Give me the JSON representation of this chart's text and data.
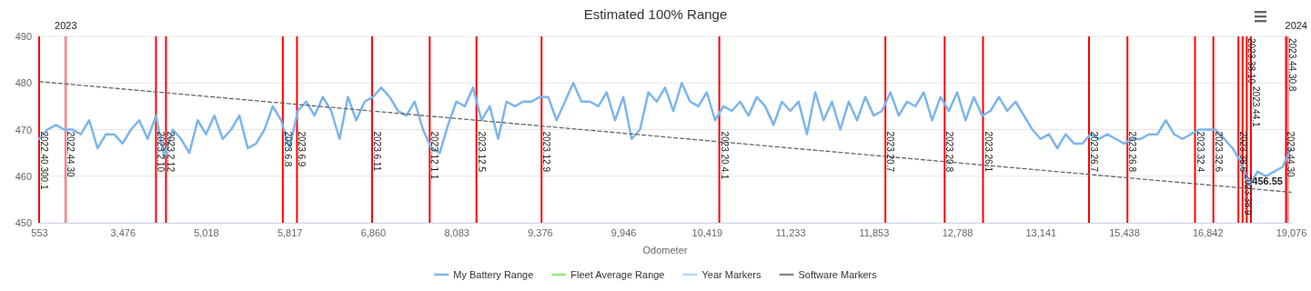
{
  "chart_data": {
    "type": "line",
    "title": "Estimated 100% Range",
    "xlabel": "Odometer",
    "categories": [
      "553",
      null,
      null,
      null,
      null,
      null,
      null,
      null,
      null,
      null,
      "3,476",
      null,
      null,
      null,
      null,
      null,
      null,
      null,
      null,
      null,
      "5,018",
      null,
      null,
      null,
      null,
      null,
      null,
      null,
      null,
      null,
      "5,817",
      null,
      null,
      null,
      null,
      null,
      null,
      null,
      null,
      null,
      "6,860",
      null,
      null,
      null,
      null,
      null,
      null,
      null,
      null,
      null,
      "8,083",
      null,
      null,
      null,
      null,
      null,
      null,
      null,
      null,
      null,
      "9,376",
      null,
      null,
      null,
      null,
      null,
      null,
      null,
      null,
      null,
      "9,946",
      null,
      null,
      null,
      null,
      null,
      null,
      null,
      null,
      null,
      "10,419",
      null,
      null,
      null,
      null,
      null,
      null,
      null,
      null,
      null,
      "11,233",
      null,
      null,
      null,
      null,
      null,
      null,
      null,
      null,
      null,
      "11,853",
      null,
      null,
      null,
      null,
      null,
      null,
      null,
      null,
      null,
      "12,788",
      null,
      null,
      null,
      null,
      null,
      null,
      null,
      null,
      null,
      "13,141",
      null,
      null,
      null,
      null,
      null,
      null,
      null,
      null,
      null,
      "15,438",
      null,
      null,
      null,
      null,
      null,
      null,
      null,
      null,
      null,
      "16,842",
      null,
      null,
      null,
      null,
      null,
      null,
      null,
      null,
      null,
      "19,076"
    ],
    "ylim": [
      450,
      490
    ],
    "yticks": [
      450,
      460,
      470,
      480,
      490
    ],
    "grid": "y",
    "legend": "bottom",
    "series": [
      {
        "name": "My Battery Range",
        "color": "#7cb5ec",
        "values": [
          468,
          470,
          471,
          470,
          470,
          469,
          472,
          466,
          469,
          469,
          467,
          470,
          472,
          468,
          473,
          464,
          470,
          468,
          465,
          472,
          469,
          473,
          468,
          470,
          473,
          466,
          467,
          470,
          475,
          472,
          466,
          474,
          476,
          473,
          477,
          474,
          468,
          477,
          472,
          476,
          477,
          479,
          477,
          474,
          473,
          476,
          470,
          466,
          465,
          471,
          476,
          475,
          479,
          472,
          475,
          468,
          476,
          475,
          476,
          476,
          477,
          477,
          472,
          476,
          480,
          476,
          476,
          475,
          478,
          472,
          477,
          468,
          470,
          478,
          476,
          479,
          474,
          480,
          476,
          475,
          478,
          472,
          475,
          474,
          476,
          473,
          477,
          475,
          471,
          476,
          474,
          476,
          469,
          478,
          472,
          476,
          470,
          476,
          472,
          477,
          473,
          474,
          478,
          473,
          476,
          475,
          478,
          472,
          477,
          474,
          478,
          472,
          477,
          473,
          474,
          477,
          474,
          476,
          473,
          470,
          468,
          469,
          466,
          469,
          467,
          467,
          469,
          468,
          469,
          468,
          467,
          468,
          468,
          469,
          469,
          472,
          469,
          468,
          469,
          470,
          470,
          470,
          468,
          466,
          463,
          458,
          461,
          460,
          461,
          462,
          466
        ]
      },
      {
        "name": "Fleet Average Range",
        "color": "#90ed7d",
        "values": [
          null,
          null,
          null,
          null,
          null,
          null,
          null,
          null,
          null,
          null,
          null,
          null,
          null,
          null,
          null,
          null,
          null,
          null,
          null,
          null,
          null,
          null,
          null,
          null,
          null,
          null,
          null,
          null,
          null,
          null,
          null,
          null,
          null,
          null,
          null,
          null,
          null,
          null,
          null,
          null,
          null,
          null,
          null,
          null,
          null,
          null,
          null,
          null,
          null,
          null,
          null,
          null,
          null,
          null,
          null,
          null,
          null,
          null,
          null,
          null,
          null,
          null,
          null,
          null,
          null,
          null,
          null,
          null,
          null,
          null,
          null,
          null,
          null,
          null,
          null,
          null,
          null,
          null,
          null,
          null,
          null,
          null,
          null,
          null,
          null,
          null,
          null,
          null,
          null,
          null,
          null,
          null,
          null,
          null,
          null,
          null,
          null,
          null,
          null,
          null,
          null,
          null,
          null,
          null,
          null,
          null,
          null,
          null,
          null,
          null,
          null,
          null,
          null,
          null,
          null,
          null,
          null,
          null,
          null,
          null,
          null,
          null,
          null,
          null,
          null,
          null,
          null,
          null,
          null,
          null,
          null,
          null,
          null,
          null,
          null,
          null,
          null,
          null,
          null,
          null,
          null,
          null,
          null,
          null,
          null,
          null,
          null,
          null,
          null,
          null,
          null
        ]
      },
      {
        "name": "Year Markers",
        "color": "#b5d8f7",
        "values": [
          null,
          null,
          null,
          null,
          null,
          null,
          null,
          null,
          null,
          null,
          null,
          null,
          null,
          null,
          null,
          null,
          null,
          null,
          null,
          null,
          null,
          null,
          null,
          null,
          null,
          null,
          null,
          null,
          null,
          null,
          null,
          null,
          null,
          null,
          null,
          null,
          null,
          null,
          null,
          null,
          null,
          null,
          null,
          null,
          null,
          null,
          null,
          null,
          null,
          null,
          null,
          null,
          null,
          null,
          null,
          null,
          null,
          null,
          null,
          null,
          null,
          null,
          null,
          null,
          null,
          null,
          null,
          null,
          null,
          null,
          null,
          null,
          null,
          null,
          null,
          null,
          null,
          null,
          null,
          null,
          null,
          null,
          null,
          null,
          null,
          null,
          null,
          null,
          null,
          null,
          null,
          null,
          null,
          null,
          null,
          null,
          null,
          null,
          null,
          null,
          null,
          null,
          null,
          null,
          null,
          null,
          null,
          null,
          null,
          null,
          null,
          null,
          null,
          null,
          null,
          null,
          null,
          null,
          null,
          null,
          null,
          null,
          null,
          null,
          null,
          null,
          null,
          null,
          null,
          null,
          null,
          null,
          null,
          null,
          null,
          null,
          null,
          null,
          null,
          null,
          null,
          null,
          null,
          null,
          null,
          null,
          null,
          null,
          null,
          null,
          null
        ]
      },
      {
        "name": "Software Markers",
        "color": "#888888",
        "values": [
          null,
          null,
          null,
          null,
          null,
          null,
          null,
          null,
          null,
          null,
          null,
          null,
          null,
          null,
          null,
          null,
          null,
          null,
          null,
          null,
          null,
          null,
          null,
          null,
          null,
          null,
          null,
          null,
          null,
          null,
          null,
          null,
          null,
          null,
          null,
          null,
          null,
          null,
          null,
          null,
          null,
          null,
          null,
          null,
          null,
          null,
          null,
          null,
          null,
          null,
          null,
          null,
          null,
          null,
          null,
          null,
          null,
          null,
          null,
          null,
          null,
          null,
          null,
          null,
          null,
          null,
          null,
          null,
          null,
          null,
          null,
          null,
          null,
          null,
          null,
          null,
          null,
          null,
          null,
          null,
          null,
          null,
          null,
          null,
          null,
          null,
          null,
          null,
          null,
          null,
          null,
          null,
          null,
          null,
          null,
          null,
          null,
          null,
          null,
          null,
          null,
          null,
          null,
          null,
          null,
          null,
          null,
          null,
          null,
          null,
          null,
          null,
          null,
          null,
          null,
          null,
          null,
          null,
          null,
          null,
          null,
          null,
          null,
          null,
          null,
          null,
          null,
          null,
          null,
          null,
          null,
          null,
          null,
          null,
          null,
          null,
          null,
          null,
          null,
          null,
          null,
          null,
          null,
          null,
          null,
          null,
          null,
          null,
          null,
          null,
          null
        ]
      },
      {
        "line_style": "dashed",
        "color": "#666666",
        "values": [
          480.3,
          null,
          null,
          null,
          null,
          null,
          null,
          null,
          null,
          null,
          null,
          null,
          null,
          null,
          null,
          null,
          null,
          null,
          null,
          null,
          null,
          null,
          null,
          null,
          null,
          null,
          null,
          null,
          null,
          null,
          null,
          null,
          null,
          null,
          null,
          null,
          null,
          null,
          null,
          null,
          null,
          null,
          null,
          null,
          null,
          null,
          null,
          null,
          null,
          null,
          null,
          null,
          null,
          null,
          null,
          null,
          null,
          null,
          null,
          null,
          null,
          null,
          null,
          null,
          null,
          null,
          null,
          null,
          null,
          null,
          null,
          null,
          null,
          null,
          null,
          null,
          null,
          null,
          null,
          null,
          null,
          null,
          null,
          null,
          null,
          null,
          null,
          null,
          null,
          null,
          null,
          null,
          null,
          null,
          null,
          null,
          null,
          null,
          null,
          null,
          null,
          null,
          null,
          null,
          null,
          null,
          null,
          null,
          null,
          null,
          null,
          null,
          null,
          null,
          null,
          null,
          null,
          null,
          null,
          null,
          null,
          null,
          null,
          null,
          null,
          null,
          null,
          null,
          null,
          null,
          null,
          null,
          null,
          null,
          null,
          null,
          null,
          null,
          null,
          null,
          null,
          null,
          null,
          null,
          null,
          null,
          null,
          null,
          null,
          null,
          456.55
        ],
        "value_labels": [
          null,
          null,
          null,
          null,
          null,
          null,
          null,
          null,
          null,
          null,
          null,
          null,
          null,
          null,
          null,
          null,
          null,
          null,
          null,
          null,
          null,
          null,
          null,
          null,
          null,
          null,
          null,
          null,
          null,
          null,
          null,
          null,
          null,
          null,
          null,
          null,
          null,
          null,
          null,
          null,
          null,
          null,
          null,
          null,
          null,
          null,
          null,
          null,
          null,
          null,
          null,
          null,
          null,
          null,
          null,
          null,
          null,
          null,
          null,
          null,
          null,
          null,
          null,
          null,
          null,
          null,
          null,
          null,
          null,
          null,
          null,
          null,
          null,
          null,
          null,
          null,
          null,
          null,
          null,
          null,
          null,
          null,
          null,
          null,
          null,
          null,
          null,
          null,
          null,
          null,
          null,
          null,
          null,
          null,
          null,
          null,
          null,
          null,
          null,
          null,
          null,
          null,
          null,
          null,
          null,
          null,
          null,
          null,
          null,
          null,
          null,
          null,
          null,
          null,
          null,
          null,
          null,
          null,
          null,
          null,
          null,
          null,
          null,
          null,
          null,
          null,
          null,
          null,
          null,
          null,
          null,
          null,
          null,
          null,
          null,
          null,
          null,
          null,
          null,
          null,
          null,
          null,
          null,
          null,
          null,
          null,
          null,
          null,
          null,
          null,
          "456.55"
        ]
      }
    ],
    "annotations": [
      "2022.40.300.1",
      "2022.44.30",
      "2023.2.10",
      "2023.2.12",
      "2023.6.8",
      "2023.6.9",
      "2023.6.11",
      "2023.12.1.1",
      "2023.12.5",
      "2023.12.9",
      "2023.20.4.1",
      "2023.20.7",
      "2023.20.8",
      "2023.26.1",
      "2023.26.7",
      "2023.26.8",
      "2023.32.4",
      "2023.32.6",
      "2023.38.6",
      "2023.38.9",
      "2023.38.10",
      "2023.44.1",
      "2023.44.30",
      "2023.44.30.8",
      "2023",
      "2024"
    ]
  }
}
